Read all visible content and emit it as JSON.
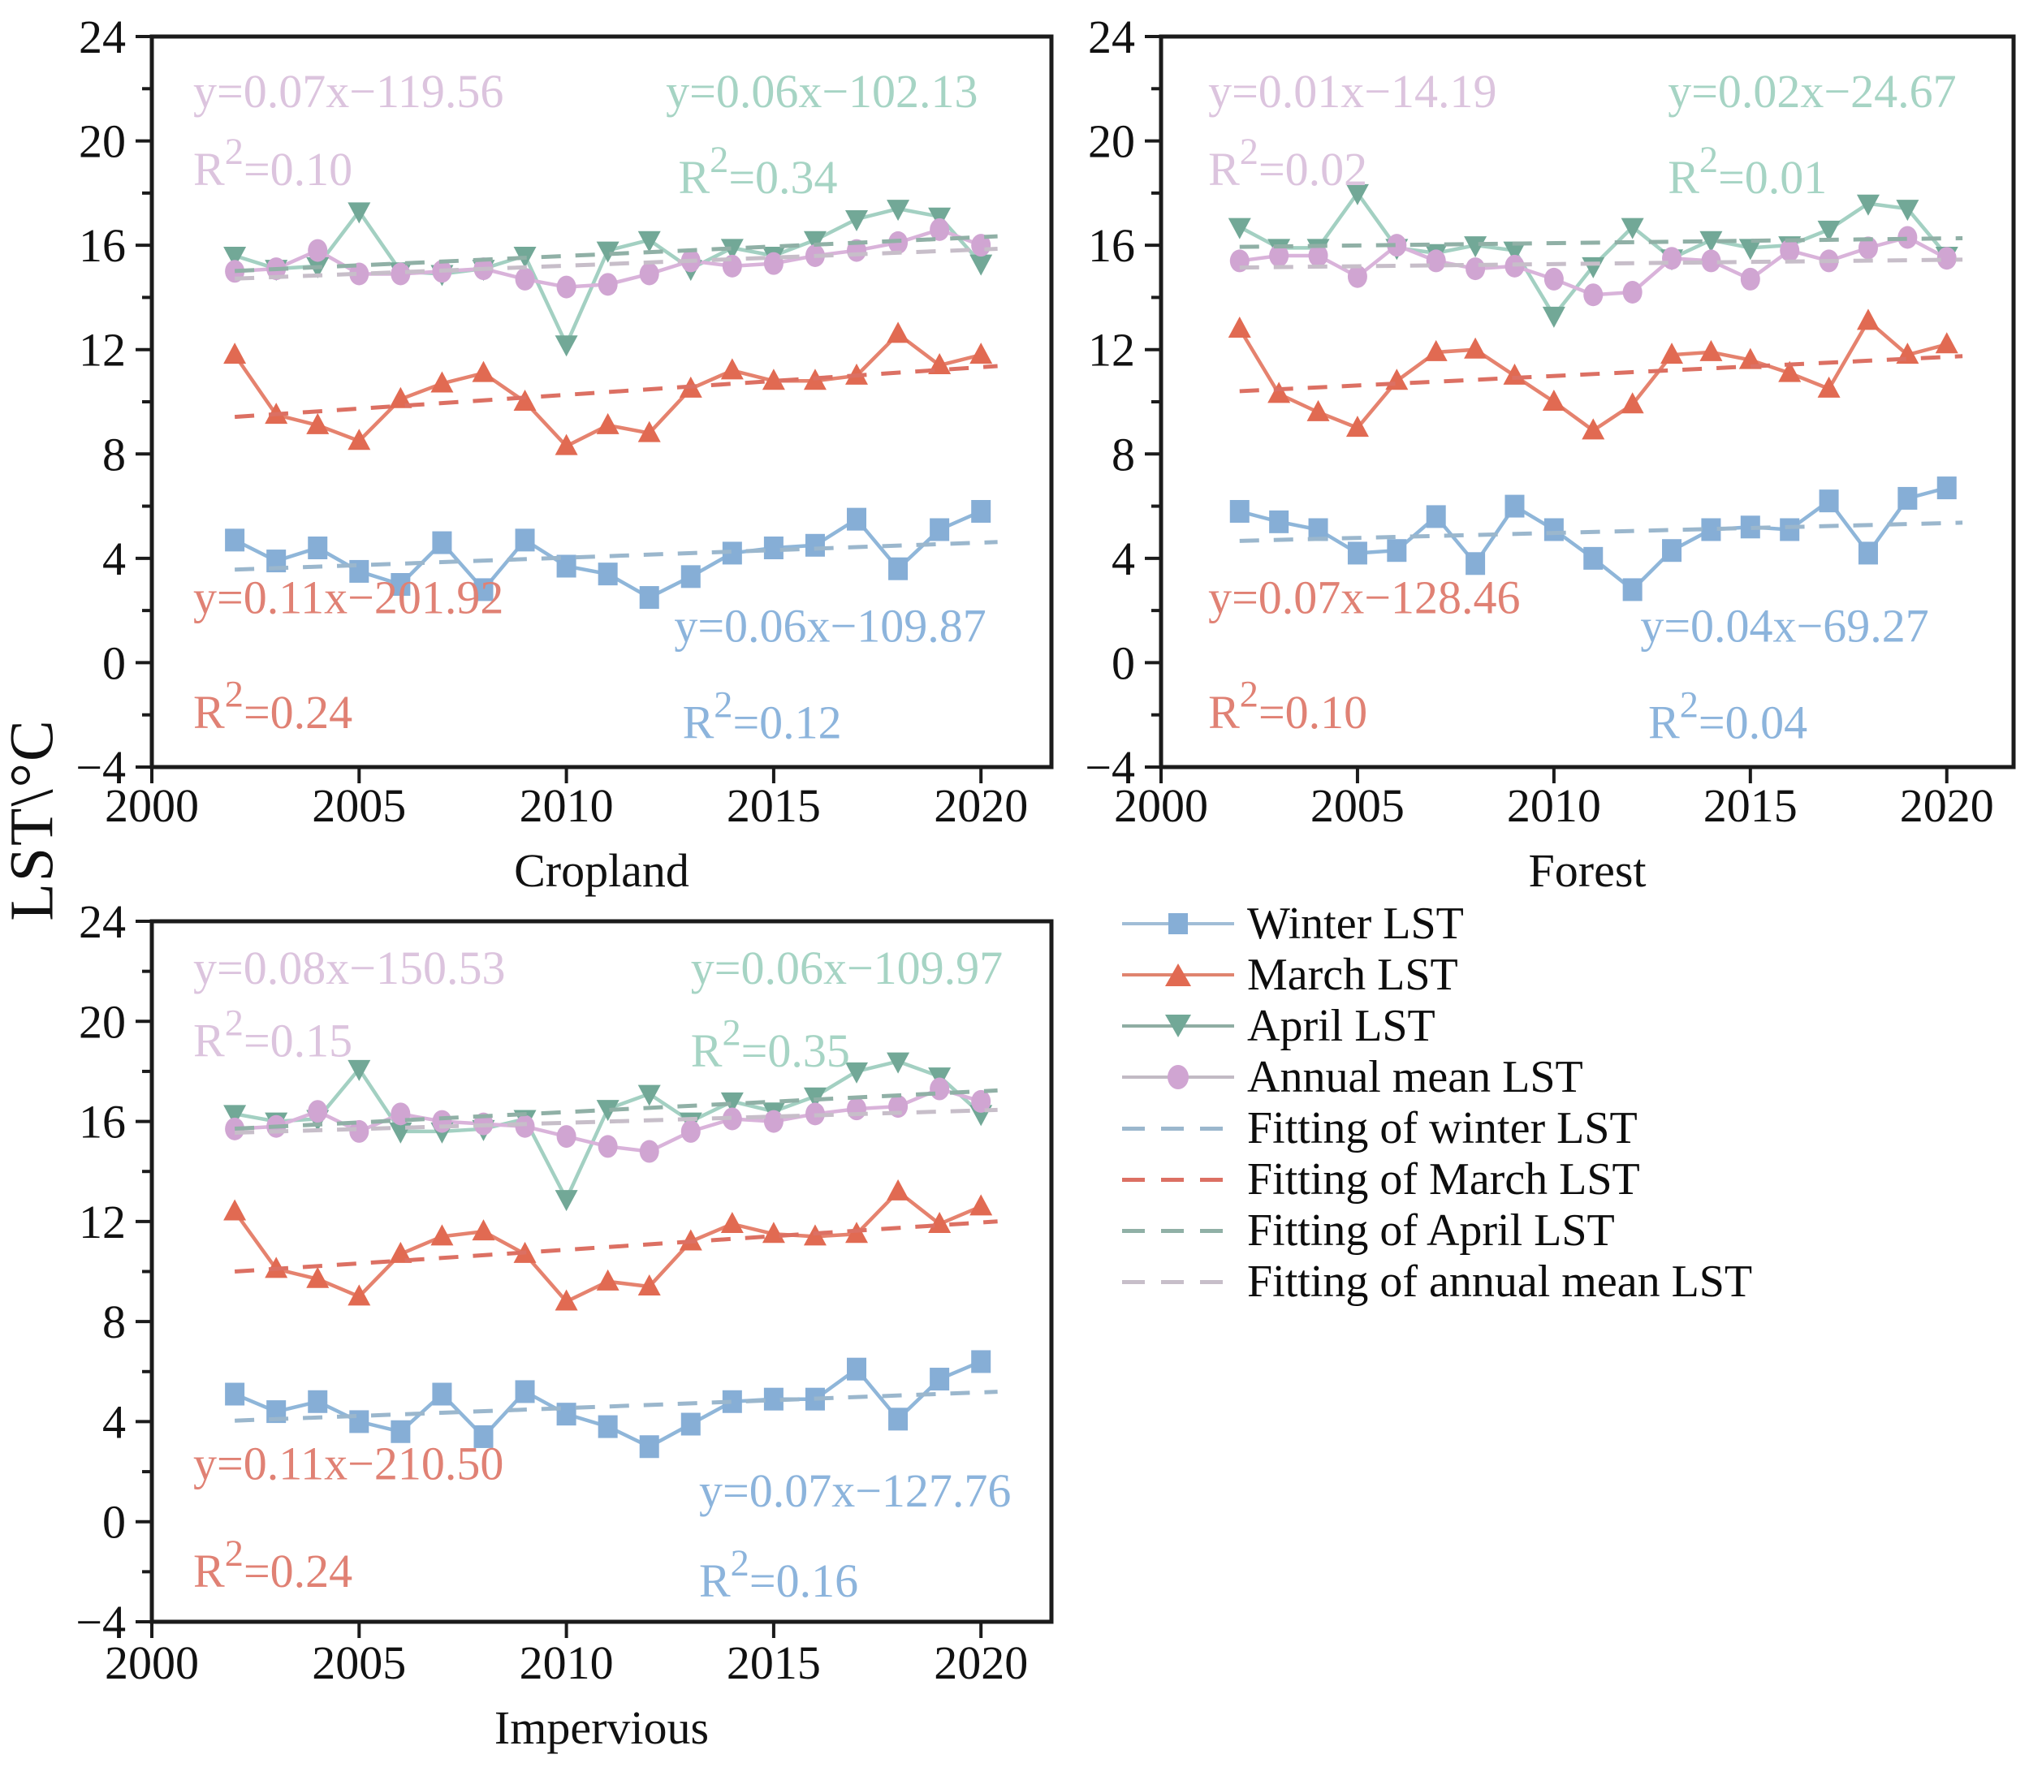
{
  "figure": {
    "y_axis_label": "LST\\°C"
  },
  "series_colors": {
    "winter": {
      "line": "#8fb6d9",
      "marker": "#86aed6",
      "fit": "#9bb7cd",
      "text": "#8cb4dc"
    },
    "march": {
      "line": "#e5826e",
      "marker": "#e16a52",
      "fit": "#dc7063",
      "text": "#e08174"
    },
    "april": {
      "line": "#a3d0c2",
      "marker": "#72a897",
      "fit": "#90b0a6",
      "text": "#a6d4c4"
    },
    "annual": {
      "line": "#d9b3da",
      "marker": "#d0a5d2",
      "fit": "#c7bec9",
      "text": "#dcc4de"
    },
    "frame": "#1b1b1b",
    "axis_text": "#111111"
  },
  "chart_data": [
    {
      "type": "line",
      "id": "cropland",
      "title": "Cropland",
      "xlabel": "Cropland",
      "ylabel": "LST\\°C",
      "xlim": [
        2000,
        2021.7
      ],
      "ylim": [
        -4,
        24
      ],
      "xticks": [
        2000,
        2005,
        2010,
        2015,
        2020
      ],
      "yticks": [
        -4,
        0,
        4,
        8,
        12,
        16,
        20,
        24
      ],
      "ytick_minor_step": 2,
      "years": [
        2002,
        2003,
        2004,
        2005,
        2006,
        2007,
        2008,
        2009,
        2010,
        2011,
        2012,
        2013,
        2014,
        2015,
        2016,
        2017,
        2018,
        2019,
        2020
      ],
      "series": {
        "winter": [
          4.7,
          3.9,
          4.4,
          3.5,
          3.0,
          4.6,
          2.8,
          4.7,
          3.7,
          3.4,
          2.5,
          3.3,
          4.2,
          4.4,
          4.5,
          5.5,
          3.6,
          5.1,
          5.8
        ],
        "march": [
          11.8,
          9.5,
          9.1,
          8.5,
          10.1,
          10.7,
          11.1,
          10.0,
          8.3,
          9.1,
          8.8,
          10.5,
          11.2,
          10.8,
          10.8,
          11.0,
          12.6,
          11.4,
          11.8
        ],
        "april": [
          15.6,
          15.1,
          15.2,
          17.3,
          15.0,
          14.9,
          15.1,
          15.6,
          12.2,
          15.8,
          16.2,
          15.1,
          15.9,
          15.6,
          16.2,
          17.0,
          17.4,
          17.1,
          15.3
        ],
        "annual": [
          15.0,
          15.1,
          15.8,
          14.9,
          14.9,
          15.0,
          15.1,
          14.7,
          14.4,
          14.5,
          14.9,
          15.4,
          15.2,
          15.3,
          15.6,
          15.8,
          16.1,
          16.6,
          16.0
        ]
      },
      "annotations": [
        {
          "key": "annual",
          "x": 2001.0,
          "y": 21.3,
          "text": "y=0.07x−119.56"
        },
        {
          "key": "annual",
          "x": 2001.0,
          "y": 18.3,
          "text": "R²=0.10"
        },
        {
          "key": "april",
          "x": 2012.4,
          "y": 21.3,
          "text": "y=0.06x−102.13"
        },
        {
          "key": "april",
          "x": 2012.7,
          "y": 18.0,
          "text": "R²=0.34"
        },
        {
          "key": "march",
          "x": 2001.0,
          "y": 1.9,
          "text": "y=0.11x−201.92"
        },
        {
          "key": "march",
          "x": 2001.0,
          "y": -2.5,
          "text": "R²=0.24"
        },
        {
          "key": "winter",
          "x": 2012.6,
          "y": 0.8,
          "text": "y=0.06x−109.87"
        },
        {
          "key": "winter",
          "x": 2012.8,
          "y": -2.9,
          "text": "R²=0.12"
        }
      ]
    },
    {
      "type": "line",
      "id": "forest",
      "title": "Forest",
      "xlabel": "Forest",
      "ylabel": "LST\\°C",
      "xlim": [
        2000,
        2021.7
      ],
      "ylim": [
        -4,
        24
      ],
      "xticks": [
        2000,
        2005,
        2010,
        2015,
        2020
      ],
      "yticks": [
        -4,
        0,
        4,
        8,
        12,
        16,
        20,
        24
      ],
      "ytick_minor_step": 2,
      "years": [
        2002,
        2003,
        2004,
        2005,
        2006,
        2007,
        2008,
        2009,
        2010,
        2011,
        2012,
        2013,
        2014,
        2015,
        2016,
        2017,
        2018,
        2019,
        2020
      ],
      "series": {
        "winter": [
          5.8,
          5.4,
          5.1,
          4.2,
          4.3,
          5.6,
          3.8,
          6.0,
          5.1,
          4.0,
          2.8,
          4.3,
          5.1,
          5.2,
          5.1,
          6.2,
          4.2,
          6.3,
          6.7
        ],
        "march": [
          12.8,
          10.3,
          9.6,
          9.0,
          10.8,
          11.9,
          12.0,
          11.0,
          10.0,
          8.9,
          9.9,
          11.8,
          11.9,
          11.6,
          11.1,
          10.5,
          13.1,
          11.8,
          12.2
        ],
        "april": [
          16.7,
          15.9,
          15.9,
          18.0,
          15.9,
          15.7,
          16.0,
          15.8,
          13.3,
          15.2,
          16.7,
          15.5,
          16.2,
          15.9,
          16.0,
          16.6,
          17.6,
          17.4,
          15.6
        ],
        "annual": [
          15.4,
          15.6,
          15.6,
          14.8,
          16.0,
          15.4,
          15.1,
          15.2,
          14.7,
          14.1,
          14.2,
          15.5,
          15.4,
          14.7,
          15.8,
          15.4,
          15.9,
          16.3,
          15.5
        ]
      },
      "annotations": [
        {
          "key": "annual",
          "x": 2001.2,
          "y": 21.3,
          "text": "y=0.01x−14.19"
        },
        {
          "key": "annual",
          "x": 2001.2,
          "y": 18.3,
          "text": "R²=0.02"
        },
        {
          "key": "april",
          "x": 2012.9,
          "y": 21.3,
          "text": "y=0.02x−24.67"
        },
        {
          "key": "april",
          "x": 2012.9,
          "y": 18.0,
          "text": "R²=0.01"
        },
        {
          "key": "march",
          "x": 2001.2,
          "y": 1.9,
          "text": "y=0.07x−128.46"
        },
        {
          "key": "march",
          "x": 2001.2,
          "y": -2.5,
          "text": "R²=0.10"
        },
        {
          "key": "winter",
          "x": 2012.2,
          "y": 0.8,
          "text": "y=0.04x−69.27"
        },
        {
          "key": "winter",
          "x": 2012.4,
          "y": -2.9,
          "text": "R²=0.04"
        }
      ]
    },
    {
      "type": "line",
      "id": "impervious",
      "title": "Impervious",
      "xlabel": "Impervious",
      "ylabel": "LST\\°C",
      "xlim": [
        2000,
        2021.7
      ],
      "ylim": [
        -4,
        24
      ],
      "xticks": [
        2000,
        2005,
        2010,
        2015,
        2020
      ],
      "yticks": [
        -4,
        0,
        4,
        8,
        12,
        16,
        20,
        24
      ],
      "ytick_minor_step": 2,
      "years": [
        2002,
        2003,
        2004,
        2005,
        2006,
        2007,
        2008,
        2009,
        2010,
        2011,
        2012,
        2013,
        2014,
        2015,
        2016,
        2017,
        2018,
        2019,
        2020
      ],
      "series": {
        "winter": [
          5.1,
          4.4,
          4.8,
          4.0,
          3.6,
          5.1,
          3.4,
          5.2,
          4.3,
          3.8,
          3.0,
          3.9,
          4.8,
          4.9,
          4.9,
          6.1,
          4.1,
          5.7,
          6.4
        ],
        "march": [
          12.4,
          10.1,
          9.7,
          9.0,
          10.7,
          11.4,
          11.6,
          10.7,
          8.8,
          9.6,
          9.4,
          11.2,
          11.9,
          11.5,
          11.4,
          11.5,
          13.2,
          11.9,
          12.6
        ],
        "april": [
          16.3,
          16.0,
          16.1,
          18.1,
          15.6,
          15.6,
          15.7,
          16.1,
          12.9,
          16.5,
          17.1,
          16.0,
          16.8,
          16.4,
          17.0,
          18.0,
          18.4,
          17.8,
          16.3
        ],
        "annual": [
          15.7,
          15.8,
          16.4,
          15.6,
          16.3,
          16.0,
          15.9,
          15.8,
          15.4,
          15.0,
          14.8,
          15.6,
          16.1,
          16.0,
          16.3,
          16.5,
          16.6,
          17.3,
          16.8
        ]
      },
      "annotations": [
        {
          "key": "annual",
          "x": 2001.0,
          "y": 21.5,
          "text": "y=0.08x−150.53"
        },
        {
          "key": "annual",
          "x": 2001.0,
          "y": 18.6,
          "text": "R²=0.15"
        },
        {
          "key": "april",
          "x": 2013.0,
          "y": 21.5,
          "text": "y=0.06x−109.97"
        },
        {
          "key": "april",
          "x": 2013.0,
          "y": 18.2,
          "text": "R²=0.35"
        },
        {
          "key": "march",
          "x": 2001.0,
          "y": 1.7,
          "text": "y=0.11x−210.50"
        },
        {
          "key": "march",
          "x": 2001.0,
          "y": -2.6,
          "text": "R²=0.24"
        },
        {
          "key": "winter",
          "x": 2013.2,
          "y": 0.6,
          "text": "y=0.07x−127.76"
        },
        {
          "key": "winter",
          "x": 2013.2,
          "y": -3.0,
          "text": "R²=0.16"
        }
      ]
    }
  ],
  "legend": {
    "items": [
      {
        "label": "Winter LST",
        "swatch": "winter-marker"
      },
      {
        "label": "March LST",
        "swatch": "march-marker"
      },
      {
        "label": "April LST",
        "swatch": "april-marker"
      },
      {
        "label": "Annual mean LST",
        "swatch": "annual-marker"
      },
      {
        "label": "Fitting of winter LST",
        "swatch": "winter-fit"
      },
      {
        "label": "Fitting of March LST",
        "swatch": "march-fit"
      },
      {
        "label": "Fitting of April LST",
        "swatch": "april-fit"
      },
      {
        "label": "Fitting of annual mean LST",
        "swatch": "annual-fit"
      }
    ]
  }
}
